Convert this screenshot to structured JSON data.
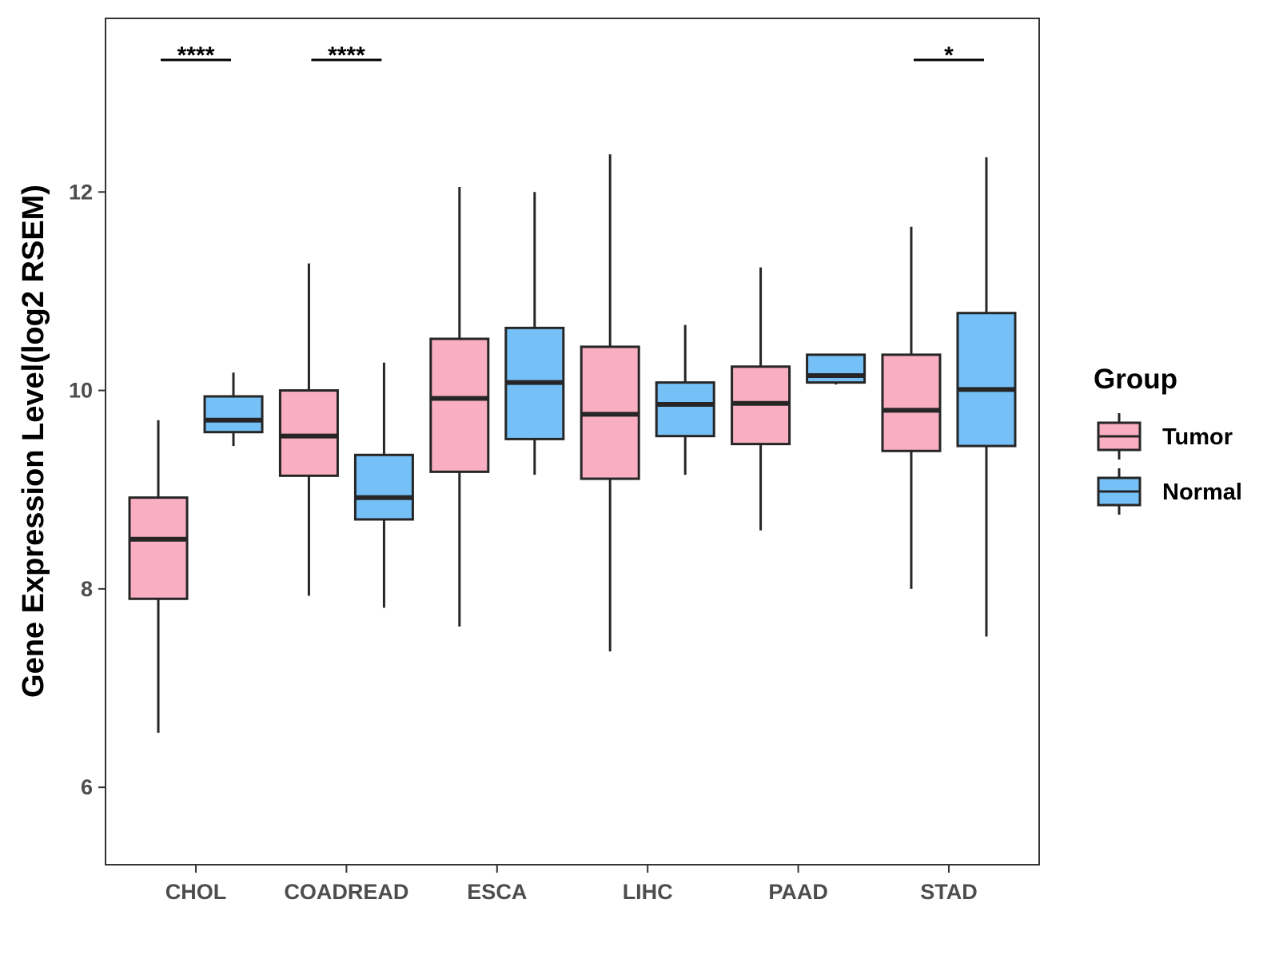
{
  "chart_data": {
    "type": "boxplot",
    "title": "",
    "xlabel": "",
    "ylabel": "Gene Expression Level(log2 RSEM)",
    "ylim": [
      5.22,
      13.75
    ],
    "yticks": [
      6,
      8,
      10,
      12
    ],
    "categories": [
      "CHOL",
      "COADREAD",
      "ESCA",
      "LIHC",
      "PAAD",
      "STAD"
    ],
    "legend": {
      "title": "Group",
      "position": "right",
      "entries": [
        "Tumor",
        "Normal"
      ]
    },
    "series": [
      {
        "name": "Tumor",
        "color": "#F9AFC1",
        "boxes": [
          {
            "category": "CHOL",
            "min": 6.55,
            "q1": 7.9,
            "median": 8.5,
            "q3": 8.92,
            "max": 9.7
          },
          {
            "category": "COADREAD",
            "min": 7.93,
            "q1": 9.14,
            "median": 9.54,
            "q3": 10.0,
            "max": 11.28
          },
          {
            "category": "ESCA",
            "min": 7.62,
            "q1": 9.18,
            "median": 9.92,
            "q3": 10.52,
            "max": 12.05
          },
          {
            "category": "LIHC",
            "min": 7.37,
            "q1": 9.11,
            "median": 9.76,
            "q3": 10.44,
            "max": 12.38
          },
          {
            "category": "PAAD",
            "min": 8.59,
            "q1": 9.46,
            "median": 9.87,
            "q3": 10.24,
            "max": 11.24
          },
          {
            "category": "STAD",
            "min": 8.0,
            "q1": 9.39,
            "median": 9.8,
            "q3": 10.36,
            "max": 11.65
          }
        ]
      },
      {
        "name": "Normal",
        "color": "#75C1F7",
        "boxes": [
          {
            "category": "CHOL",
            "min": 9.44,
            "q1": 9.58,
            "median": 9.7,
            "q3": 9.94,
            "max": 10.18
          },
          {
            "category": "COADREAD",
            "min": 7.81,
            "q1": 8.7,
            "median": 8.92,
            "q3": 9.35,
            "max": 10.28
          },
          {
            "category": "ESCA",
            "min": 9.15,
            "q1": 9.51,
            "median": 10.08,
            "q3": 10.63,
            "max": 12.0
          },
          {
            "category": "LIHC",
            "min": 9.15,
            "q1": 9.54,
            "median": 9.86,
            "q3": 10.08,
            "max": 10.66
          },
          {
            "category": "PAAD",
            "min": 10.06,
            "q1": 10.08,
            "median": 10.15,
            "q3": 10.36,
            "max": 10.36
          },
          {
            "category": "STAD",
            "min": 7.52,
            "q1": 9.44,
            "median": 10.01,
            "q3": 10.78,
            "max": 12.35
          }
        ]
      }
    ],
    "significance": [
      {
        "category": "CHOL",
        "label": "****"
      },
      {
        "category": "COADREAD",
        "label": "****"
      },
      {
        "category": "STAD",
        "label": "*"
      }
    ]
  }
}
